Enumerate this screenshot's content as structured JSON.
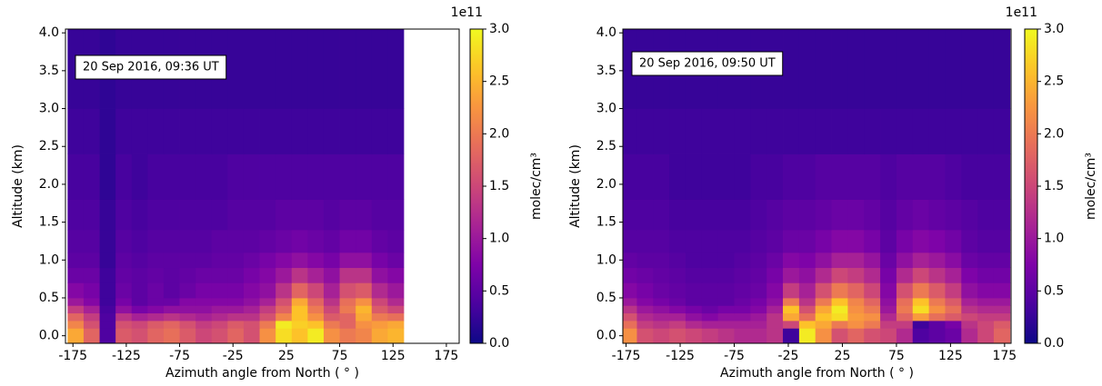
{
  "chart_data": [
    {
      "type": "heatmap",
      "annotation": "20 Sep 2016, 09:36 UT",
      "xlabel": "Azimuth angle from North ( ° )",
      "ylabel": "Altitude (km)",
      "colormap": "plasma",
      "x_edges": [
        -180,
        -165,
        -150,
        -135,
        -120,
        -105,
        -90,
        -75,
        -60,
        -45,
        -30,
        -15,
        0,
        15,
        30,
        45,
        60,
        75,
        90,
        105,
        120,
        135
      ],
      "y_edges": [
        -0.1,
        0.1,
        0.2,
        0.3,
        0.4,
        0.5,
        0.7,
        0.9,
        1.1,
        1.4,
        1.8,
        2.4,
        3.0,
        4.05
      ],
      "values": [
        [
          2.4,
          1.8,
          0.4,
          1.7,
          1.6,
          1.8,
          1.9,
          1.7,
          1.5,
          1.6,
          1.8,
          1.6,
          2.2,
          2.8,
          2.6,
          2.9,
          2.2,
          2.0,
          2.1,
          2.4,
          2.5
        ],
        [
          2.1,
          1.6,
          0.4,
          1.6,
          1.5,
          1.7,
          1.8,
          1.6,
          1.4,
          1.5,
          1.7,
          1.6,
          2.0,
          2.9,
          2.7,
          2.6,
          2.0,
          1.8,
          2.2,
          2.3,
          2.4
        ],
        [
          1.8,
          1.4,
          0.4,
          1.3,
          1.1,
          1.2,
          1.3,
          1.2,
          1.1,
          1.2,
          1.3,
          1.3,
          1.6,
          2.1,
          2.6,
          2.2,
          1.7,
          1.8,
          2.4,
          2.0,
          1.9
        ],
        [
          1.4,
          1.1,
          0.35,
          0.9,
          0.7,
          0.8,
          0.9,
          0.9,
          0.9,
          1.0,
          1.0,
          1.1,
          1.4,
          1.8,
          2.6,
          2.0,
          1.5,
          2.0,
          2.5,
          1.7,
          1.5
        ],
        [
          1.0,
          0.8,
          0.3,
          0.7,
          0.5,
          0.6,
          0.6,
          0.8,
          0.8,
          0.8,
          0.8,
          0.9,
          1.1,
          1.6,
          2.4,
          1.8,
          1.3,
          1.9,
          2.2,
          1.5,
          1.2
        ],
        [
          0.8,
          0.7,
          0.3,
          0.6,
          0.5,
          0.6,
          0.5,
          0.6,
          0.7,
          0.7,
          0.7,
          0.8,
          0.9,
          1.3,
          1.8,
          1.5,
          1.1,
          1.6,
          1.7,
          1.2,
          1.0
        ],
        [
          0.6,
          0.6,
          0.3,
          0.55,
          0.5,
          0.55,
          0.5,
          0.55,
          0.6,
          0.6,
          0.6,
          0.7,
          0.8,
          1.0,
          1.3,
          1.1,
          0.9,
          1.3,
          1.3,
          0.9,
          0.8
        ],
        [
          0.5,
          0.5,
          0.25,
          0.5,
          0.45,
          0.5,
          0.5,
          0.5,
          0.5,
          0.55,
          0.55,
          0.6,
          0.7,
          0.8,
          0.9,
          0.8,
          0.7,
          0.9,
          0.9,
          0.7,
          0.6
        ],
        [
          0.45,
          0.45,
          0.25,
          0.45,
          0.4,
          0.45,
          0.45,
          0.45,
          0.45,
          0.5,
          0.5,
          0.5,
          0.55,
          0.6,
          0.65,
          0.6,
          0.55,
          0.65,
          0.65,
          0.55,
          0.5
        ],
        [
          0.4,
          0.4,
          0.25,
          0.4,
          0.35,
          0.4,
          0.4,
          0.4,
          0.4,
          0.4,
          0.45,
          0.45,
          0.45,
          0.5,
          0.5,
          0.5,
          0.45,
          0.5,
          0.5,
          0.45,
          0.45
        ],
        [
          0.35,
          0.35,
          0.2,
          0.35,
          0.3,
          0.35,
          0.35,
          0.35,
          0.35,
          0.35,
          0.4,
          0.4,
          0.4,
          0.4,
          0.4,
          0.4,
          0.4,
          0.4,
          0.4,
          0.4,
          0.4
        ],
        [
          0.3,
          0.3,
          0.2,
          0.3,
          0.3,
          0.3,
          0.3,
          0.3,
          0.3,
          0.3,
          0.3,
          0.3,
          0.3,
          0.3,
          0.3,
          0.3,
          0.3,
          0.3,
          0.3,
          0.3,
          0.3
        ],
        [
          0.25,
          0.25,
          0.2,
          0.25,
          0.25,
          0.25,
          0.25,
          0.25,
          0.25,
          0.25,
          0.25,
          0.25,
          0.25,
          0.25,
          0.25,
          0.25,
          0.25,
          0.25,
          0.25,
          0.25,
          0.25
        ]
      ],
      "xlim": [
        -182,
        187
      ],
      "ylim": [
        -0.1,
        4.05
      ],
      "xticks": [
        -175,
        -125,
        -75,
        -25,
        25,
        75,
        125,
        175
      ],
      "yticks": [
        {
          "value": 0,
          "label": "0.0"
        },
        {
          "value": 0.5,
          "label": "0.5"
        },
        {
          "value": 1,
          "label": "1.0"
        },
        {
          "value": 1.5,
          "label": "1.5"
        },
        {
          "value": 2,
          "label": "2.0"
        },
        {
          "value": 2.5,
          "label": "2.5"
        },
        {
          "value": 3,
          "label": "3.0"
        },
        {
          "value": 3.5,
          "label": "3.5"
        },
        {
          "value": 4,
          "label": "4.0"
        }
      ],
      "colorbar": {
        "label": "molec/cm³",
        "offset_label": "1e11",
        "lim": [
          0,
          3
        ],
        "ticks": [
          {
            "value": 0,
            "label": "0.0"
          },
          {
            "value": 0.5,
            "label": "0.5"
          },
          {
            "value": 1,
            "label": "1.0"
          },
          {
            "value": 1.5,
            "label": "1.5"
          },
          {
            "value": 2,
            "label": "2.0"
          },
          {
            "value": 2.5,
            "label": "2.5"
          },
          {
            "value": 3,
            "label": "3.0"
          }
        ]
      }
    },
    {
      "type": "heatmap",
      "annotation": "20 Sep 2016, 09:50 UT",
      "xlabel": "Azimuth angle from North ( ° )",
      "ylabel": "Altitude (km)",
      "colormap": "plasma",
      "x_edges": [
        -180,
        -165,
        -150,
        -135,
        -120,
        -105,
        -90,
        -75,
        -60,
        -45,
        -30,
        -15,
        0,
        15,
        30,
        45,
        60,
        75,
        90,
        105,
        120,
        135,
        150,
        165,
        180
      ],
      "y_edges": [
        -0.1,
        0.1,
        0.2,
        0.3,
        0.4,
        0.5,
        0.7,
        0.9,
        1.1,
        1.4,
        1.8,
        2.4,
        3.0,
        4.05
      ],
      "values": [
        [
          2.2,
          1.6,
          1.5,
          1.6,
          1.5,
          1.4,
          1.3,
          1.2,
          1.2,
          1.3,
          0.3,
          2.9,
          2.2,
          1.6,
          1.8,
          1.6,
          1.5,
          1.2,
          0.4,
          0.5,
          0.6,
          1.2,
          1.5,
          1.8
        ],
        [
          1.9,
          1.4,
          1.3,
          1.4,
          1.2,
          1.1,
          1.1,
          1.1,
          1.1,
          1.3,
          1.5,
          2.6,
          2.4,
          2.0,
          2.2,
          2.0,
          1.4,
          1.4,
          0.3,
          0.5,
          0.7,
          1.3,
          1.5,
          1.7
        ],
        [
          1.6,
          1.2,
          1.1,
          1.1,
          0.9,
          0.8,
          0.9,
          0.9,
          1.0,
          1.3,
          2.4,
          1.9,
          2.6,
          2.8,
          2.3,
          2.2,
          1.2,
          1.8,
          2.3,
          1.9,
          1.7,
          1.5,
          1.4,
          1.4
        ],
        [
          1.3,
          1.0,
          0.9,
          0.8,
          0.7,
          0.6,
          0.7,
          0.7,
          0.8,
          1.1,
          2.6,
          1.6,
          2.4,
          2.9,
          2.2,
          2.0,
          1.0,
          2.0,
          2.8,
          2.2,
          1.9,
          1.3,
          1.2,
          1.2
        ],
        [
          1.0,
          0.8,
          0.7,
          0.6,
          0.5,
          0.5,
          0.5,
          0.6,
          0.7,
          0.9,
          2.0,
          1.3,
          2.0,
          2.6,
          2.1,
          1.8,
          0.9,
          1.9,
          2.6,
          2.0,
          1.7,
          1.1,
          1.0,
          1.0
        ],
        [
          0.8,
          0.7,
          0.6,
          0.55,
          0.5,
          0.5,
          0.5,
          0.55,
          0.6,
          0.8,
          1.4,
          1.1,
          1.6,
          2.0,
          1.8,
          1.5,
          0.8,
          1.6,
          2.0,
          1.7,
          1.4,
          0.9,
          0.8,
          0.8
        ],
        [
          0.65,
          0.6,
          0.55,
          0.5,
          0.45,
          0.45,
          0.45,
          0.5,
          0.55,
          0.7,
          1.0,
          0.9,
          1.2,
          1.5,
          1.4,
          1.2,
          0.7,
          1.2,
          1.5,
          1.3,
          1.1,
          0.75,
          0.65,
          0.65
        ],
        [
          0.55,
          0.5,
          0.5,
          0.45,
          0.4,
          0.4,
          0.4,
          0.45,
          0.5,
          0.6,
          0.8,
          0.75,
          0.9,
          1.1,
          1.1,
          0.95,
          0.6,
          0.9,
          1.1,
          1.0,
          0.85,
          0.6,
          0.55,
          0.55
        ],
        [
          0.45,
          0.45,
          0.45,
          0.4,
          0.4,
          0.4,
          0.4,
          0.4,
          0.45,
          0.5,
          0.6,
          0.6,
          0.7,
          0.8,
          0.8,
          0.7,
          0.5,
          0.7,
          0.8,
          0.75,
          0.65,
          0.5,
          0.45,
          0.45
        ],
        [
          0.4,
          0.4,
          0.4,
          0.35,
          0.35,
          0.35,
          0.35,
          0.35,
          0.4,
          0.45,
          0.5,
          0.5,
          0.55,
          0.6,
          0.6,
          0.55,
          0.45,
          0.55,
          0.6,
          0.55,
          0.5,
          0.45,
          0.4,
          0.4
        ],
        [
          0.35,
          0.35,
          0.35,
          0.3,
          0.3,
          0.3,
          0.3,
          0.3,
          0.35,
          0.35,
          0.4,
          0.4,
          0.45,
          0.45,
          0.45,
          0.45,
          0.4,
          0.45,
          0.45,
          0.45,
          0.4,
          0.35,
          0.35,
          0.35
        ],
        [
          0.3,
          0.3,
          0.3,
          0.3,
          0.3,
          0.3,
          0.3,
          0.3,
          0.3,
          0.3,
          0.3,
          0.3,
          0.3,
          0.3,
          0.3,
          0.3,
          0.3,
          0.3,
          0.3,
          0.3,
          0.3,
          0.3,
          0.3,
          0.3
        ],
        [
          0.25,
          0.25,
          0.25,
          0.25,
          0.25,
          0.25,
          0.25,
          0.25,
          0.25,
          0.25,
          0.25,
          0.25,
          0.25,
          0.25,
          0.25,
          0.25,
          0.25,
          0.25,
          0.25,
          0.25,
          0.25,
          0.25,
          0.25,
          0.25
        ]
      ],
      "xlim": [
        -178,
        181
      ],
      "ylim": [
        -0.1,
        4.05
      ],
      "xticks": [
        -175,
        -125,
        -75,
        -25,
        25,
        75,
        125,
        175
      ],
      "yticks": [
        {
          "value": 0,
          "label": "0.0"
        },
        {
          "value": 0.5,
          "label": "0.5"
        },
        {
          "value": 1,
          "label": "1.0"
        },
        {
          "value": 1.5,
          "label": "1.5"
        },
        {
          "value": 2,
          "label": "2.0"
        },
        {
          "value": 2.5,
          "label": "2.5"
        },
        {
          "value": 3,
          "label": "3.0"
        },
        {
          "value": 3.5,
          "label": "3.5"
        },
        {
          "value": 4,
          "label": "4.0"
        }
      ],
      "colorbar": {
        "label": "molec/cm³",
        "offset_label": "1e11",
        "lim": [
          0,
          3
        ],
        "ticks": [
          {
            "value": 0,
            "label": "0.0"
          },
          {
            "value": 0.5,
            "label": "0.5"
          },
          {
            "value": 1,
            "label": "1.0"
          },
          {
            "value": 1.5,
            "label": "1.5"
          },
          {
            "value": 2,
            "label": "2.0"
          },
          {
            "value": 2.5,
            "label": "2.5"
          },
          {
            "value": 3,
            "label": "3.0"
          }
        ]
      }
    }
  ]
}
